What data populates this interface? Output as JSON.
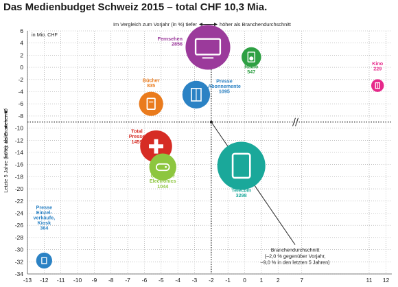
{
  "title": "Das Medienbudget Schweiz 2015 – total CHF 10,3 Mia.",
  "chart_data": {
    "type": "scatter",
    "title": "Das Medienbudget Schweiz 2015 – total CHF 10,3 Mia.",
    "xlabel_left": "Im Vergleich zum Vorjahr (in %)  tiefer",
    "xlabel_right": "höher als Branchendurchschnitt",
    "ylabel_top": "Letzte 5 Jahre (in %): tiefer",
    "ylabel_bottom": "höher als Branchen-Ø",
    "unit_note": "in Mio. CHF",
    "xlim": [
      -13,
      13
    ],
    "ylim": [
      -34,
      6
    ],
    "x_axis_break": true,
    "x_ticks": [
      "-13",
      "-12",
      "-11",
      "-10",
      "-9",
      "-8",
      "-7",
      "-6",
      "-5",
      "-4",
      "-3",
      "-2",
      "-1",
      "0",
      "1",
      "2",
      "7",
      "11",
      "12",
      "13"
    ],
    "y_ticks": [
      "6",
      "4",
      "2",
      "0",
      "-2",
      "-4",
      "-6",
      "-8",
      "-10",
      "-12",
      "-14",
      "-16",
      "-18",
      "-20",
      "-22",
      "-24",
      "-26",
      "-28",
      "-30",
      "-32",
      "-34"
    ],
    "reference": {
      "x": -2.0,
      "y": -9.0
    },
    "benchmark_annotation": [
      "Branchendurchschnitt",
      "(–2,0 % gegenüber Vorjahr,",
      "–9,0 % in den letzten 5 Jahren)"
    ],
    "points": [
      {
        "name": "Fernsehen",
        "value": "2856",
        "x": -2.2,
        "y": 3.3,
        "color": "#9b3a9b",
        "icon": "tv-icon"
      },
      {
        "name": "Radio",
        "value": "547",
        "x": 0.4,
        "y": 1.7,
        "color": "#2ea043",
        "icon": "radio-icon"
      },
      {
        "name": "Kino",
        "value": "229",
        "x": 11.5,
        "y": -3.0,
        "color": "#e6288a",
        "icon": "film-icon"
      },
      {
        "name": "Bücher",
        "value": "835",
        "x": -5.6,
        "y": -6.0,
        "color": "#ea7b1d",
        "icon": "book-icon"
      },
      {
        "name": "Presse Abonnemente",
        "value": "1095",
        "x": -2.9,
        "y": -4.5,
        "color": "#2b82c4",
        "icon": "newspaper-icon"
      },
      {
        "name": "Total Presse",
        "value": "1459",
        "x": -5.3,
        "y": -13.0,
        "color": "#d62c24",
        "icon": "press-icon"
      },
      {
        "name": "Consumer Electronics",
        "value": "1044",
        "x": -4.9,
        "y": -16.4,
        "color": "#8dc63f",
        "icon": "gamepad-icon"
      },
      {
        "name": "IT & Telecom",
        "value": "3298",
        "x": -0.2,
        "y": -16.2,
        "color": "#1aa89a",
        "icon": "tablet-icon"
      },
      {
        "name": "Presse Einzelverkäufe, Kiosk",
        "value": "364",
        "x": -12.0,
        "y": -31.8,
        "color": "#2b82c4",
        "icon": "kiosk-icon"
      }
    ]
  }
}
